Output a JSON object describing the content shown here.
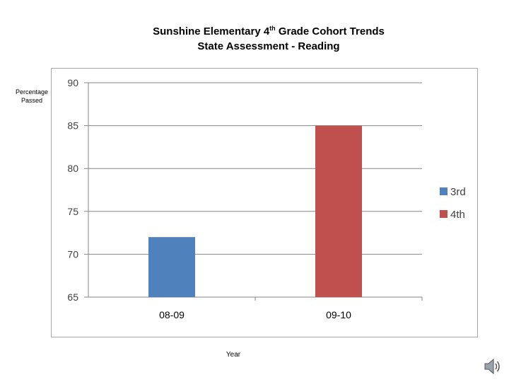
{
  "title_parts": {
    "prefix": "Sunshine Elementary 4",
    "superscript": "th",
    "suffix": " Grade Cohort Trends"
  },
  "title_line2": "State Assessment - Reading",
  "chart_data": {
    "type": "bar",
    "title": "Sunshine Elementary 4th Grade Cohort Trends State Assessment - Reading",
    "xlabel": "Year",
    "ylabel": "Percentage Passed",
    "categories": [
      "08-09",
      "09-10"
    ],
    "series": [
      {
        "name": "3rd",
        "color": "#4f81bd",
        "values": [
          72,
          null
        ]
      },
      {
        "name": "4th",
        "color": "#c0504d",
        "values": [
          null,
          85
        ]
      }
    ],
    "ylim": [
      65,
      90
    ],
    "yticks": [
      "65",
      "70",
      "75",
      "80",
      "85",
      "90"
    ],
    "grid": true,
    "legend": "right"
  },
  "ylabel_lines": [
    "Percentage",
    "Passed"
  ],
  "xlabel_text": "Year",
  "speaker_icon": "speaker-icon"
}
